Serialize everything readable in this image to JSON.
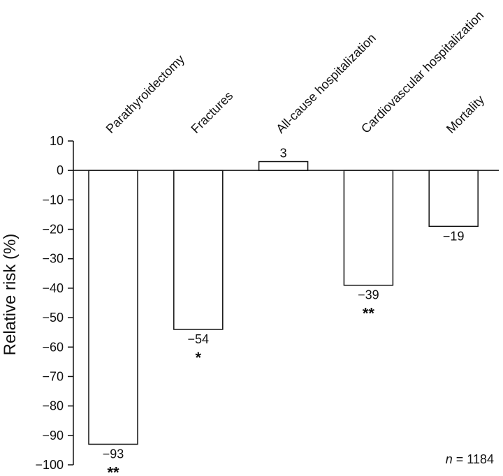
{
  "chart_data": {
    "type": "bar",
    "categories": [
      "Parathyroidectomy",
      "Fractures",
      "All-cause hospitalization",
      "Cardiovascular hospitalization",
      "Mortality"
    ],
    "values": [
      -93,
      -54,
      3,
      -39,
      -19
    ],
    "data_labels": [
      "−93",
      "−54",
      "3",
      "−39",
      "−19"
    ],
    "significance": [
      "**",
      "*",
      "",
      "**",
      ""
    ],
    "ylabel": "Relative risk (%)",
    "ylim": [
      -100,
      10
    ],
    "yticks": [
      10,
      0,
      -10,
      -20,
      -30,
      -40,
      -50,
      -60,
      -70,
      -80,
      -90,
      -100
    ],
    "ytick_labels": [
      "10",
      "0",
      "−10",
      "−20",
      "−30",
      "−40",
      "−50",
      "−60",
      "−70",
      "−80",
      "−90",
      "−100"
    ],
    "annotation": {
      "italic": "n",
      "text": " = 1184"
    },
    "grid": false,
    "legend": "none",
    "colors": {
      "bar_fill": "#ffffff",
      "bar_stroke": "#111111",
      "axis": "#111111"
    }
  }
}
